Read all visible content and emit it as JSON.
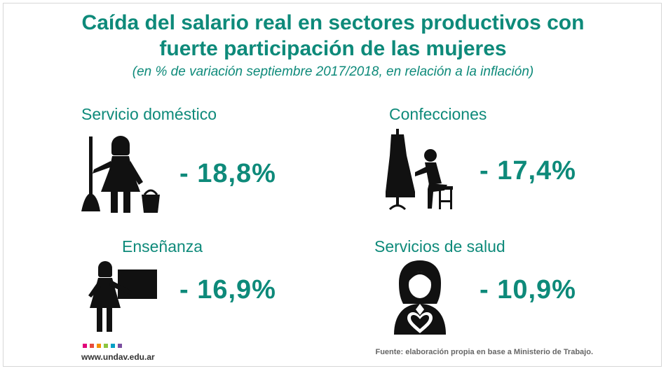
{
  "header": {
    "title_line1": "Caída del salario real en sectores productivos con",
    "title_line2": "fuerte participación de las mujeres",
    "subtitle": "(en % de variación septiembre 2017/2018, en relación a la inflación)"
  },
  "chart_data": {
    "type": "table",
    "categories": [
      "Servicio doméstico",
      "Confecciones",
      "Enseñanza",
      "Servicios de salud"
    ],
    "values": [
      -18.8,
      -17.4,
      -16.9,
      -10.9
    ],
    "display_values": [
      "- 18,8%",
      "- 17,4%",
      "- 16,9%",
      "- 10,9%"
    ],
    "title": "Caída del salario real en sectores productivos con fuerte participación de las mujeres",
    "subtitle": "(en % de variación septiembre 2017/2018, en relación a la inflación)",
    "icons": [
      "housekeeper-icon",
      "dressmaker-icon",
      "teacher-icon",
      "nurse-icon"
    ]
  },
  "footer": {
    "source": "Fuente: elaboración propia en base a Ministerio de Trabajo.",
    "logo_url": "www.undav.edu.ar",
    "logo_colors": [
      "#e2007a",
      "#e74c3c",
      "#f39200",
      "#8cc63f",
      "#00a0c6",
      "#7b4fa0"
    ]
  },
  "colors": {
    "accent": "#0e8a7a",
    "icon": "#111111"
  }
}
